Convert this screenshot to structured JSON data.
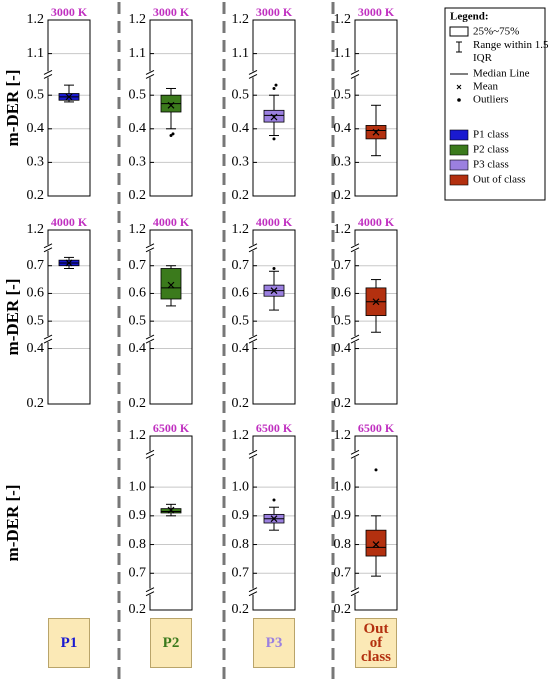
{
  "chart_data": {
    "type": "box",
    "y_label": "m-DER [-]",
    "classes": [
      {
        "name": "P1 class",
        "label": "P1",
        "color": "#1a1ad0"
      },
      {
        "name": "P2 class",
        "label": "P2",
        "color": "#3b7a1c"
      },
      {
        "name": "P3 class",
        "label": "P3",
        "color": "#9b80e0"
      },
      {
        "name": "Out of class",
        "label": "Out of class",
        "color": "#b3300f"
      }
    ],
    "rows": [
      {
        "temperature": "3000 K",
        "ylim": [
          0.2,
          1.2
        ],
        "breaks": [
          [
            0.55,
            1.05
          ]
        ],
        "yticks": [
          0.2,
          0.3,
          0.4,
          0.5,
          1.1,
          1.2
        ],
        "boxes": [
          {
            "min": 0.48,
            "q1": 0.485,
            "median": 0.495,
            "q3": 0.505,
            "max": 0.53,
            "mean": 0.495,
            "outliers": []
          },
          {
            "min": 0.4,
            "q1": 0.45,
            "median": 0.475,
            "q3": 0.5,
            "max": 0.52,
            "mean": 0.47,
            "outliers": [
              0.38,
              0.385
            ]
          },
          {
            "min": 0.38,
            "q1": 0.42,
            "median": 0.44,
            "q3": 0.455,
            "max": 0.5,
            "mean": 0.435,
            "outliers": [
              0.52,
              0.53,
              0.37
            ]
          },
          {
            "min": 0.32,
            "q1": 0.37,
            "median": 0.395,
            "q3": 0.41,
            "max": 0.47,
            "mean": 0.39,
            "outliers": []
          }
        ]
      },
      {
        "temperature": "4000 K",
        "ylim": [
          0.2,
          1.2
        ],
        "breaks": [
          [
            0.42,
            0.45
          ],
          [
            0.75,
            1.15
          ]
        ],
        "yticks": [
          0.2,
          0.4,
          0.5,
          0.6,
          0.7,
          1.2
        ],
        "boxes": [
          {
            "min": 0.69,
            "q1": 0.7,
            "median": 0.71,
            "q3": 0.72,
            "max": 0.73,
            "mean": 0.71,
            "outliers": []
          },
          {
            "min": 0.555,
            "q1": 0.58,
            "median": 0.62,
            "q3": 0.69,
            "max": 0.7,
            "mean": 0.63,
            "outliers": []
          },
          {
            "min": 0.54,
            "q1": 0.59,
            "median": 0.61,
            "q3": 0.63,
            "max": 0.68,
            "mean": 0.61,
            "outliers": [
              0.69
            ]
          },
          {
            "min": 0.46,
            "q1": 0.52,
            "median": 0.57,
            "q3": 0.62,
            "max": 0.65,
            "mean": 0.57,
            "outliers": []
          }
        ]
      },
      {
        "temperature": "6500 K",
        "ylim": [
          0.2,
          1.2
        ],
        "breaks": [
          [
            0.25,
            0.65
          ],
          [
            1.1,
            1.15
          ]
        ],
        "yticks": [
          0.2,
          0.7,
          0.8,
          0.9,
          {
            "value": 1,
            "label": "1.0"
          },
          1.2
        ],
        "boxes": [
          null,
          {
            "min": 0.9,
            "q1": 0.91,
            "median": 0.915,
            "q3": 0.925,
            "max": 0.94,
            "mean": 0.92,
            "outliers": []
          },
          {
            "min": 0.85,
            "q1": 0.875,
            "median": 0.89,
            "q3": 0.905,
            "max": 0.93,
            "mean": 0.89,
            "outliers": [
              0.955
            ]
          },
          {
            "min": 0.69,
            "q1": 0.76,
            "median": 0.79,
            "q3": 0.85,
            "max": 0.9,
            "mean": 0.8,
            "outliers": [
              1.06
            ]
          }
        ]
      }
    ],
    "legend": {
      "title": "Legend:",
      "box": "25%~75%",
      "range": "Range within 1.5 IQR",
      "median": "Median Line",
      "mean": "Mean",
      "outliers": "Outliers"
    }
  }
}
